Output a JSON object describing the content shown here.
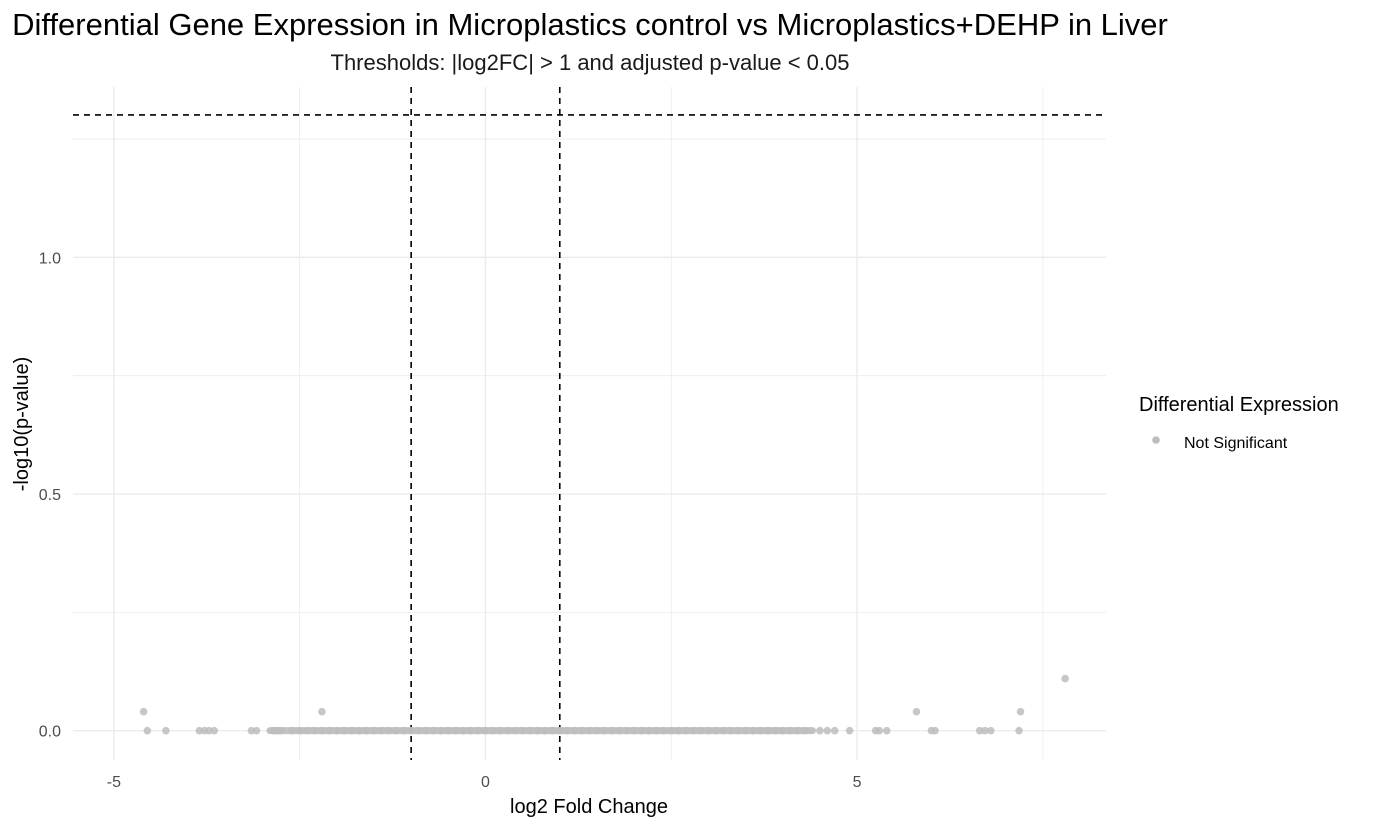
{
  "chart_data": {
    "type": "scatter",
    "title": "Differential Gene Expression in Microplastics control vs Microplastics+DEHP in Liver",
    "subtitle": "Thresholds: |log2FC| > 1 and adjusted p-value < 0.05",
    "xlabel": "log2 Fold Change",
    "ylabel": "-log10(p-value)",
    "xlim": [
      -5.55,
      8.35
    ],
    "ylim": [
      -0.062,
      1.36
    ],
    "x_ticks": [
      -5,
      0,
      5
    ],
    "x_tick_labels": [
      "-5",
      "0",
      "5"
    ],
    "y_ticks": [
      0.0,
      0.5,
      1.0
    ],
    "y_tick_labels": [
      "0.0",
      "0.5",
      "1.0"
    ],
    "grid": true,
    "thresholds": {
      "log2fc": [
        -1,
        1
      ],
      "neg_log10_p": 1.30103
    },
    "legend": {
      "title": "Differential Expression",
      "position": "right",
      "entries": [
        {
          "label": "Not Significant",
          "color": "#bdbdbd"
        }
      ]
    },
    "series": [
      {
        "name": "Not Significant",
        "color": "#bdbdbd",
        "points": [
          [
            -4.6,
            0.04
          ],
          [
            -4.55,
            0.0
          ],
          [
            -4.3,
            0.0
          ],
          [
            -3.85,
            0.0
          ],
          [
            -3.78,
            0.0
          ],
          [
            -3.72,
            0.0
          ],
          [
            -3.65,
            0.0
          ],
          [
            -3.15,
            0.0
          ],
          [
            -3.08,
            0.0
          ],
          [
            -2.85,
            0.0
          ],
          [
            -2.8,
            0.0
          ],
          [
            -2.75,
            0.0
          ],
          [
            -2.6,
            0.0
          ],
          [
            -2.5,
            0.0
          ],
          [
            -2.4,
            0.0
          ],
          [
            -2.3,
            0.0
          ],
          [
            -2.2,
            0.04
          ],
          [
            -2.2,
            0.0
          ],
          [
            -2.1,
            0.0
          ],
          [
            -2.0,
            0.0
          ],
          [
            -1.9,
            0.0
          ],
          [
            -1.8,
            0.0
          ],
          [
            -1.7,
            0.0
          ],
          [
            -1.6,
            0.0
          ],
          [
            -1.5,
            0.0
          ],
          [
            -1.4,
            0.0
          ],
          [
            -1.3,
            0.0
          ],
          [
            -1.2,
            0.0
          ],
          [
            -1.1,
            0.0
          ],
          [
            -1.0,
            0.0
          ],
          [
            -0.9,
            0.0
          ],
          [
            -0.8,
            0.0
          ],
          [
            -0.7,
            0.0
          ],
          [
            -0.6,
            0.0
          ],
          [
            -0.5,
            0.0
          ],
          [
            -0.4,
            0.0
          ],
          [
            -0.3,
            0.0
          ],
          [
            -0.2,
            0.0
          ],
          [
            -0.1,
            0.0
          ],
          [
            0.0,
            0.0
          ],
          [
            0.1,
            0.0
          ],
          [
            0.2,
            0.0
          ],
          [
            0.3,
            0.0
          ],
          [
            0.4,
            0.0
          ],
          [
            0.5,
            0.0
          ],
          [
            0.6,
            0.0
          ],
          [
            0.7,
            0.0
          ],
          [
            0.8,
            0.0
          ],
          [
            0.9,
            0.0
          ],
          [
            1.0,
            0.0
          ],
          [
            1.1,
            0.0
          ],
          [
            1.2,
            0.0
          ],
          [
            1.3,
            0.0
          ],
          [
            1.4,
            0.0
          ],
          [
            1.5,
            0.0
          ],
          [
            1.6,
            0.0
          ],
          [
            1.7,
            0.0
          ],
          [
            1.8,
            0.0
          ],
          [
            1.9,
            0.0
          ],
          [
            2.0,
            0.0
          ],
          [
            2.1,
            0.0
          ],
          [
            2.2,
            0.0
          ],
          [
            2.3,
            0.0
          ],
          [
            2.4,
            0.0
          ],
          [
            2.5,
            0.0
          ],
          [
            2.6,
            0.0
          ],
          [
            2.7,
            0.0
          ],
          [
            2.8,
            0.0
          ],
          [
            2.9,
            0.0
          ],
          [
            3.0,
            0.0
          ],
          [
            3.1,
            0.0
          ],
          [
            3.2,
            0.0
          ],
          [
            3.3,
            0.0
          ],
          [
            3.4,
            0.0
          ],
          [
            3.5,
            0.0
          ],
          [
            3.6,
            0.0
          ],
          [
            3.7,
            0.0
          ],
          [
            3.8,
            0.0
          ],
          [
            3.9,
            0.0
          ],
          [
            4.0,
            0.0
          ],
          [
            4.1,
            0.0
          ],
          [
            4.2,
            0.0
          ],
          [
            4.3,
            0.0
          ],
          [
            4.5,
            0.0
          ],
          [
            4.6,
            0.0
          ],
          [
            4.7,
            0.0
          ],
          [
            4.9,
            0.0
          ],
          [
            5.25,
            0.0
          ],
          [
            5.3,
            0.0
          ],
          [
            5.4,
            0.0
          ],
          [
            5.8,
            0.04
          ],
          [
            6.0,
            0.0
          ],
          [
            6.05,
            0.0
          ],
          [
            6.65,
            0.0
          ],
          [
            6.72,
            0.0
          ],
          [
            6.8,
            0.0
          ],
          [
            7.2,
            0.04
          ],
          [
            7.18,
            0.0
          ],
          [
            7.8,
            0.11
          ]
        ]
      }
    ]
  }
}
